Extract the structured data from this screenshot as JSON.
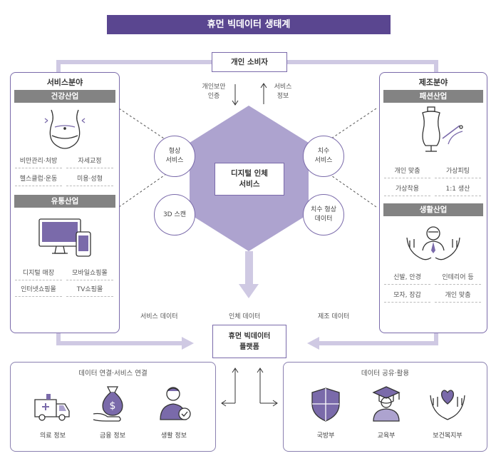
{
  "title": "휴먼 빅데이터 생태계",
  "consumer": "개인 소비자",
  "consumer_left_label": [
    "개인보안",
    "인증"
  ],
  "consumer_right_label": [
    "서비스",
    "정보"
  ],
  "center_box": [
    "디지털 인체",
    "서비스"
  ],
  "circles": {
    "shape_service": [
      "형상",
      "서비스"
    ],
    "scan_3d": [
      "3D 스캔"
    ],
    "size_service": [
      "치수",
      "서비스"
    ],
    "size_shape_data": [
      "치수 형상",
      "데이터"
    ]
  },
  "left_panel": {
    "title": "서비스분야",
    "health": {
      "header": "건강산업",
      "items": [
        "비만관리·처방",
        "자세교정",
        "헬스클럽·운동",
        "미용·성형"
      ]
    },
    "retail": {
      "header": "유통산업",
      "items": [
        "디지털 매장",
        "모바일쇼핑몰",
        "인터넷쇼핑몰",
        "TV쇼핑몰"
      ]
    }
  },
  "right_panel": {
    "title": "제조분야",
    "fashion": {
      "header": "패션산업",
      "items": [
        "개인 맞춤",
        "가상피팅",
        "가상착용",
        "1:1 생산"
      ]
    },
    "living": {
      "header": "생활산업",
      "items": [
        "신발, 안경",
        "인테리어 등",
        "모자, 장갑",
        "개인 맞춤"
      ]
    }
  },
  "flow_labels": [
    "서비스 데이터",
    "인체 데이터",
    "제조 데이터"
  ],
  "platform": [
    "휴먼 빅데이터",
    "플랫폼"
  ],
  "bottom_left": {
    "title": "데이터 연결·서비스 연결",
    "items": [
      "의료 정보",
      "금융 정보",
      "생활 정보"
    ]
  },
  "bottom_right": {
    "title": "데이터 공유·활용",
    "items": [
      "국방부",
      "교육부",
      "보건복지부"
    ]
  },
  "colors": {
    "accent": "#5a4690",
    "hexagon": "#ada3cf",
    "arrow": "#cfc9e3",
    "header_gray": "#838383"
  }
}
